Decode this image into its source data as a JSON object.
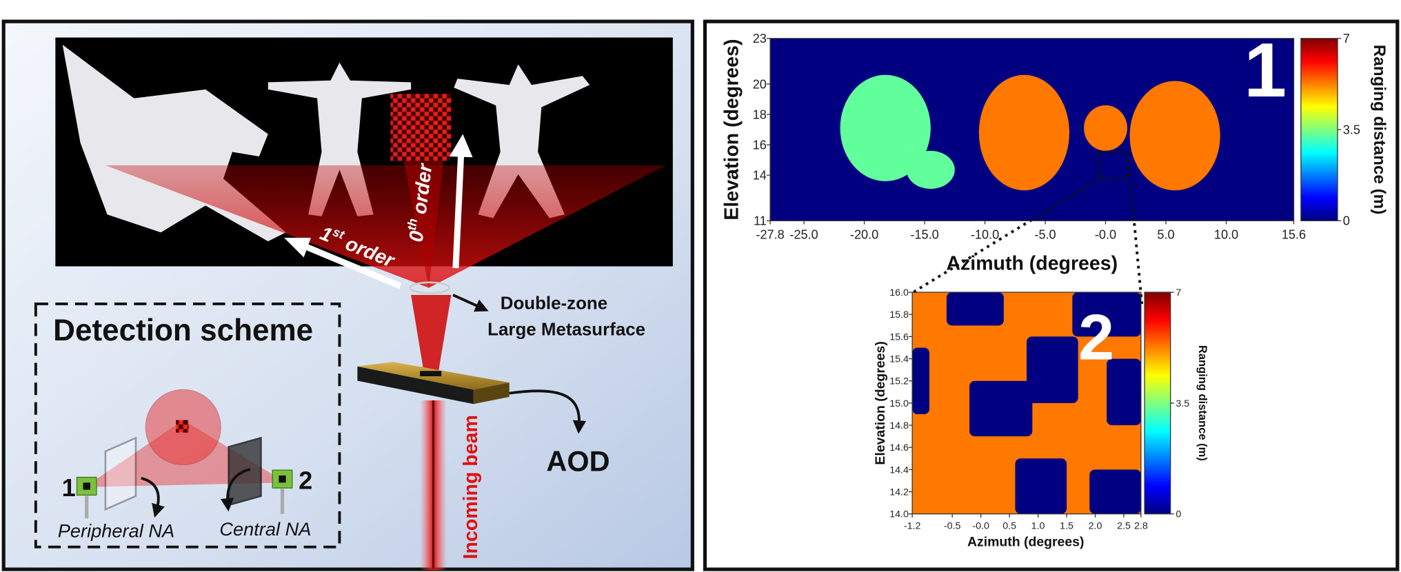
{
  "setup": {
    "zeroth_order": {
      "number": "0",
      "suffix": "th",
      "word": "order"
    },
    "first_order": {
      "number": "1",
      "suffix": "st",
      "word": "order"
    },
    "metasurface": [
      "Double-zone",
      "Large Metasurface"
    ],
    "aod": "AOD",
    "incoming_beam": "Incoming beam",
    "detection_scheme": {
      "title": "Detection scheme",
      "detector_1": "1",
      "detector_2": "2",
      "peripheral": "Peripheral NA",
      "central": "Central NA"
    }
  },
  "chart_data": [
    {
      "type": "heatmap",
      "panel_label": "1",
      "xlabel": "Azimuth (degrees)",
      "ylabel": "Elevation (degrees)",
      "colorbar_label": "Ranging distance (m)",
      "xlim": [
        -27.8,
        15.6
      ],
      "xticks": [
        -27.8,
        {
          "value": -25,
          "label": "-25.0"
        },
        {
          "value": -20,
          "label": "-20.0"
        },
        {
          "value": -15,
          "label": "-15.0"
        },
        {
          "value": -10,
          "label": "-10.0"
        },
        {
          "value": -5,
          "label": "-5.0"
        },
        {
          "value": 0,
          "label": "-0.0"
        },
        {
          "value": 5,
          "label": "5.0"
        },
        {
          "value": 10,
          "label": "10.0"
        },
        15.6
      ],
      "ylim": [
        11,
        23
      ],
      "yticks": [
        11,
        14,
        16,
        18,
        20,
        23
      ],
      "clim": [
        0,
        7
      ],
      "cticks": [
        0,
        3.5,
        7
      ],
      "background_distance": 0,
      "regions": [
        {
          "azimuth": [
            -22,
            -14.5
          ],
          "elevation": [
            13.6,
            20.6
          ],
          "distance": 3.3
        },
        {
          "azimuth": [
            -16.5,
            -12.5
          ],
          "elevation": [
            13.1,
            15.6
          ],
          "distance": 3.3
        },
        {
          "azimuth": [
            -10.5,
            -3
          ],
          "elevation": [
            13,
            20.6
          ],
          "distance": 5.3
        },
        {
          "azimuth": [
            -1.8,
            1.8
          ],
          "elevation": [
            15.6,
            18.6
          ],
          "distance": 5.3
        },
        {
          "azimuth": [
            2,
            9.5
          ],
          "elevation": [
            13,
            20.2
          ],
          "distance": 5.3
        }
      ]
    },
    {
      "type": "heatmap",
      "panel_label": "2",
      "xlabel": "Azimuth (degrees)",
      "ylabel": "Elevation (degrees)",
      "colorbar_label": "Ranging distance (m)",
      "xlim": [
        -1.2,
        2.8
      ],
      "xticks": [
        -1.2,
        -0.5,
        {
          "value": 0,
          "label": "-0.0"
        },
        0.5,
        {
          "value": 1,
          "label": "1.0"
        },
        1.5,
        {
          "value": 2,
          "label": "2.0"
        },
        2.5,
        2.8
      ],
      "ylim": [
        14,
        16
      ],
      "yticks": [
        {
          "value": 14,
          "label": "14.0"
        },
        14.2,
        14.4,
        14.6,
        14.8,
        {
          "value": 15,
          "label": "15.0"
        },
        15.2,
        15.4,
        15.6,
        15.8,
        {
          "value": 16,
          "label": "16.0"
        }
      ],
      "clim": [
        0,
        7
      ],
      "cticks": [
        0,
        3.5,
        7
      ],
      "background_distance": 5.3,
      "regions": [
        {
          "azimuth": [
            -0.6,
            0.4
          ],
          "elevation": [
            15.7,
            16
          ],
          "distance": 0
        },
        {
          "azimuth": [
            1.6,
            2.8
          ],
          "elevation": [
            15.6,
            16
          ],
          "distance": 0
        },
        {
          "azimuth": [
            0.8,
            1.7
          ],
          "elevation": [
            15,
            15.6
          ],
          "distance": 0
        },
        {
          "azimuth": [
            -0.2,
            0.9
          ],
          "elevation": [
            14.7,
            15.2
          ],
          "distance": 0
        },
        {
          "azimuth": [
            2.2,
            2.8
          ],
          "elevation": [
            14.8,
            15.4
          ],
          "distance": 0
        },
        {
          "azimuth": [
            -1.2,
            -0.9
          ],
          "elevation": [
            14.9,
            15.5
          ],
          "distance": 0
        },
        {
          "azimuth": [
            0.6,
            1.5
          ],
          "elevation": [
            14,
            14.5
          ],
          "distance": 0
        },
        {
          "azimuth": [
            1.9,
            2.8
          ],
          "elevation": [
            14,
            14.4
          ],
          "distance": 0
        }
      ]
    }
  ]
}
